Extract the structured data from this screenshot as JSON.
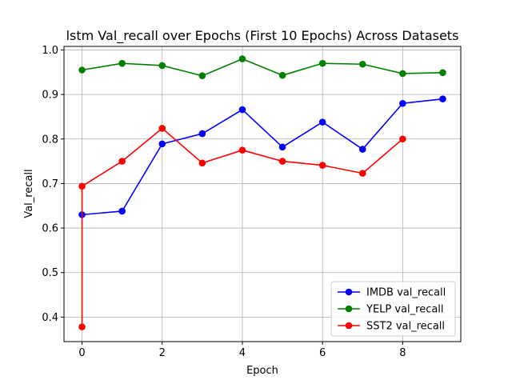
{
  "chart_data": {
    "type": "line",
    "title": "lstm Val_recall over Epochs (First 10 Epochs) Across Datasets",
    "xlabel": "Epoch",
    "ylabel": "Val_recall",
    "xlim": [
      -0.45,
      9.45
    ],
    "ylim": [
      0.345,
      1.008
    ],
    "x_ticks": [
      0,
      2,
      4,
      6,
      8
    ],
    "y_ticks": [
      0.4,
      0.5,
      0.6,
      0.7,
      0.8,
      0.9,
      1.0
    ],
    "grid": true,
    "legend_position": "lower-right",
    "series": [
      {
        "name": "IMDB val_recall",
        "color": "#0000ff",
        "x": [
          0,
          1,
          2,
          3,
          4,
          5,
          6,
          7,
          8,
          9
        ],
        "values": [
          0.63,
          0.638,
          0.789,
          0.812,
          0.866,
          0.782,
          0.838,
          0.777,
          0.88,
          0.89
        ]
      },
      {
        "name": "YELP val_recall",
        "color": "#008000",
        "x": [
          0,
          1,
          2,
          3,
          4,
          5,
          6,
          7,
          8,
          9
        ],
        "values": [
          0.955,
          0.97,
          0.965,
          0.942,
          0.98,
          0.943,
          0.97,
          0.968,
          0.947,
          0.949
        ]
      },
      {
        "name": "SST2 val_recall",
        "color": "#ff0000",
        "x": [
          0,
          0,
          1,
          2,
          3,
          4,
          5,
          6,
          7,
          8
        ],
        "values": [
          0.378,
          0.694,
          0.75,
          0.824,
          0.746,
          0.775,
          0.75,
          0.741,
          0.723,
          0.8
        ]
      }
    ]
  }
}
